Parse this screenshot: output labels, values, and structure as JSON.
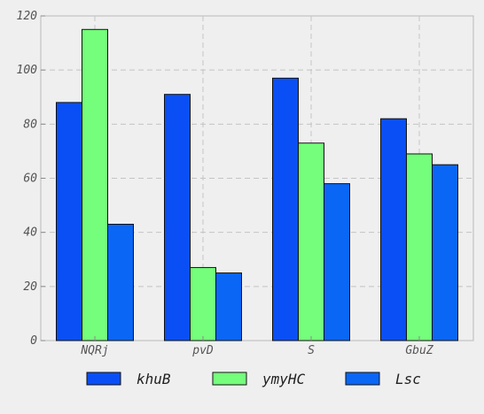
{
  "chart_data": {
    "type": "bar",
    "categories": [
      "NQRj",
      "pvD",
      "S",
      "GbuZ"
    ],
    "series": [
      {
        "name": "khuB",
        "values": [
          88,
          91,
          97,
          82
        ],
        "color": "#0a4ff5"
      },
      {
        "name": "ymyHC",
        "values": [
          115,
          27,
          73,
          69
        ],
        "color": "#74fe7b"
      },
      {
        "name": "Lsc",
        "values": [
          43,
          25,
          58,
          65
        ],
        "color": "#0a66f5"
      }
    ],
    "title": "",
    "xlabel": "",
    "ylabel": "",
    "ylim": [
      0,
      120
    ],
    "yticks": [
      "0",
      "20",
      "40",
      "60",
      "80",
      "100",
      "120"
    ],
    "grid": true,
    "legend_position": "bottom"
  }
}
